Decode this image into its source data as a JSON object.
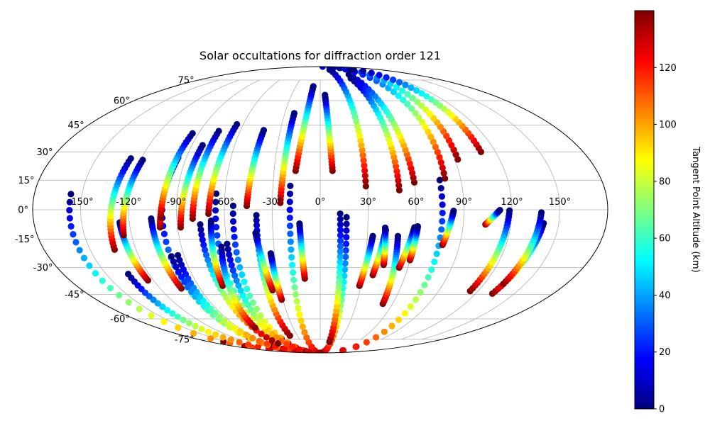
{
  "chart_data": {
    "type": "scatter",
    "projection": "mollweide",
    "title": "Solar occultations for diffraction order 121",
    "lon_tick_labels": [
      "-150°",
      "-120°",
      "-90°",
      "-60°",
      "-30°",
      "0°",
      "30°",
      "60°",
      "90°",
      "120°",
      "150°"
    ],
    "lon_ticks": [
      -150,
      -120,
      -90,
      -60,
      -30,
      0,
      30,
      60,
      90,
      120,
      150
    ],
    "lat_tick_labels": [
      "-75°",
      "-60°",
      "-45°",
      "-30°",
      "-15°",
      "0°",
      "15°",
      "30°",
      "45°",
      "60°",
      "75°"
    ],
    "lat_ticks": [
      -75,
      -60,
      -45,
      -30,
      -15,
      0,
      15,
      30,
      45,
      60,
      75
    ],
    "grid": true,
    "colorbar": {
      "label": "Tangent Point Altitude (km)",
      "colormap": "jet",
      "range": [
        0,
        140
      ],
      "tick_values": [
        0,
        20,
        40,
        60,
        80,
        100,
        120
      ],
      "tick_labels": [
        "0",
        "20",
        "40",
        "60",
        "80",
        "100",
        "120"
      ]
    },
    "series": [
      {
        "lon_start": -157,
        "lat_start": -103.0,
        "lon_end": -157,
        "lat_end": 8.0
      },
      {
        "lon_start": -99,
        "lat_start": -106.5,
        "lon_end": -99,
        "lat_end": 4.0
      },
      {
        "lon_start": -66,
        "lat_start": -107.0,
        "lon_end": -65.5,
        "lat_end": 8.2
      },
      {
        "lon_start": -56,
        "lat_start": -105.5,
        "lon_end": -54.5,
        "lat_end": 2.0
      },
      {
        "lon_start": -19,
        "lat_start": -98.0,
        "lon_end": -19,
        "lat_end": 12.2
      },
      {
        "lon_start": 18,
        "lat_start": -96.0,
        "lon_end": 16.5,
        "lat_end": -3.8
      },
      {
        "lon_start": 77,
        "lat_start": -98.5,
        "lon_end": 76.5,
        "lat_end": 15.2
      },
      {
        "lon_start": -134,
        "lat_start": -90.0,
        "lon_end": -134.5,
        "lat_end": -33.5
      },
      {
        "lon_start": -98,
        "lat_start": -99.0,
        "lon_end": -98.5,
        "lat_end": -24.0
      },
      {
        "lon_start": -96,
        "lat_start": -91.5,
        "lon_end": -94,
        "lat_end": -23.5
      },
      {
        "lon_start": -61,
        "lat_start": -93.0,
        "lon_end": -60,
        "lat_end": -17.5
      },
      {
        "lon_start": -74,
        "lat_start": -78.5,
        "lon_end": -75.5,
        "lat_end": -7.5
      },
      {
        "lon_start": -40,
        "lat_start": -72.0,
        "lon_end": -40.0,
        "lat_end": -2.8
      },
      {
        "lon_start": 15,
        "lat_start": -77.0,
        "lon_end": 12.5,
        "lat_end": -2.0
      },
      {
        "lon_start": 52,
        "lat_start": -50.5,
        "lon_end": 49.5,
        "lat_end": -13.5
      },
      {
        "lon_start": 114,
        "lat_start": -43.0,
        "lon_end": 118.5,
        "lat_end": -0.4
      },
      {
        "lon_start": 133,
        "lat_start": -44.5,
        "lon_end": 140.5,
        "lat_end": -6.9
      },
      {
        "lon_start": 134,
        "lat_start": -39.0,
        "lon_end": 138.5,
        "lat_end": -1.4
      },
      {
        "lon_start": -36,
        "lat_start": -42.5,
        "lon_end": -41.0,
        "lat_end": -11.9
      },
      {
        "lon_start": -11,
        "lat_start": -36.0,
        "lon_end": -13.0,
        "lat_end": -7.1
      },
      {
        "lon_start": -104,
        "lat_start": -41.5,
        "lon_end": -106.0,
        "lat_end": -4.5
      },
      {
        "lon_start": -124,
        "lat_start": -37.0,
        "lon_end": -126.0,
        "lat_end": -6.5
      },
      {
        "lon_start": -72,
        "lat_start": -40.0,
        "lon_end": -68.5,
        "lat_end": -5.6
      },
      {
        "lon_start": -72,
        "lat_start": -66.0,
        "lon_end": -64.0,
        "lat_end": -19.0
      },
      {
        "lon_start": -31,
        "lat_start": -48.0,
        "lon_end": -32.5,
        "lat_end": -22.5
      },
      {
        "lon_start": 29,
        "lat_start": -40.0,
        "lon_end": 33.5,
        "lat_end": -13.5
      },
      {
        "lon_start": 37,
        "lat_start": -34.0,
        "lon_end": 41.5,
        "lat_end": -10.4
      },
      {
        "lon_start": 43,
        "lat_start": -28.5,
        "lon_end": 41.0,
        "lat_end": -9.2
      },
      {
        "lon_start": 54,
        "lat_start": -30.0,
        "lon_end": 59.5,
        "lat_end": -9.0
      },
      {
        "lon_start": 60,
        "lat_start": -26.0,
        "lon_end": 61.5,
        "lat_end": -8.5
      },
      {
        "lon_start": 79,
        "lat_start": -18.0,
        "lon_end": 83.5,
        "lat_end": -0.6
      },
      {
        "lon_start": 104,
        "lat_start": -7.5,
        "lon_end": 112.5,
        "lat_end": -0.2
      },
      {
        "lon_start": -134,
        "lat_start": -20.5,
        "lon_end": -127.0,
        "lat_end": 26.5
      },
      {
        "lon_start": -125,
        "lat_start": -13.0,
        "lon_end": -118.5,
        "lat_end": 25.7
      },
      {
        "lon_start": -101,
        "lat_start": -9.0,
        "lon_end": -95.5,
        "lat_end": 27.0
      },
      {
        "lon_start": -88,
        "lat_start": -9.0,
        "lon_end": -82.5,
        "lat_end": 33.6
      },
      {
        "lon_start": -100,
        "lat_start": -4.0,
        "lon_end": -94.5,
        "lat_end": 40.2
      },
      {
        "lon_start": -80,
        "lat_start": -4.5,
        "lon_end": -76.0,
        "lat_end": 41.5
      },
      {
        "lon_start": -70,
        "lat_start": -2.0,
        "lon_end": -65.0,
        "lat_end": 45.4
      },
      {
        "lon_start": -46,
        "lat_start": 2.0,
        "lon_end": -42.5,
        "lat_end": 42.0
      },
      {
        "lon_start": -25,
        "lat_start": 3.5,
        "lon_end": -22.0,
        "lat_end": 52.0
      },
      {
        "lon_start": -16,
        "lat_start": 20.0,
        "lon_end": -8.5,
        "lat_end": 70.0
      },
      {
        "lon_start": 8,
        "lat_start": 20.0,
        "lon_end": 5.0,
        "lat_end": 63.8
      },
      {
        "lon_start": 29,
        "lat_start": 12.0,
        "lon_end": 28.5,
        "lat_end": 85.0
      },
      {
        "lon_start": 50,
        "lat_start": 10.0,
        "lon_end": 48.5,
        "lat_end": 76.5
      },
      {
        "lon_start": 60,
        "lat_start": 14.0,
        "lon_end": 55.0,
        "lat_end": 80.0
      },
      {
        "lon_start": 80,
        "lat_start": 16.0,
        "lon_end": 81.5,
        "lat_end": 91.0
      },
      {
        "lon_start": 92,
        "lat_start": 26.0,
        "lon_end": 93.0,
        "lat_end": 95.0
      },
      {
        "lon_start": 110,
        "lat_start": 30.0,
        "lon_end": 108.5,
        "lat_end": 85.5
      }
    ]
  }
}
